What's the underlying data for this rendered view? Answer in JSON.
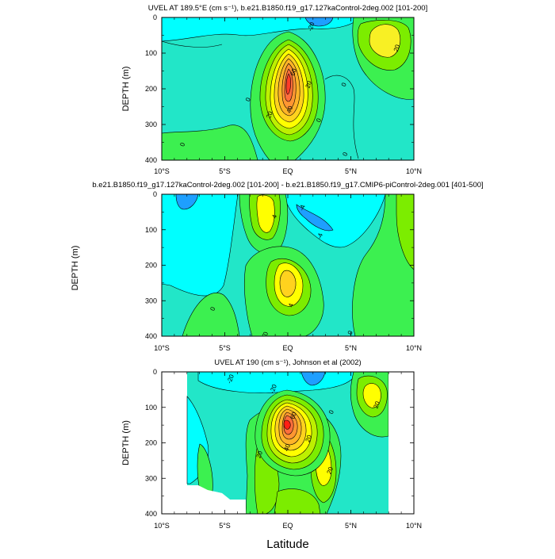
{
  "figure": {
    "xlabel": "Latitude",
    "shared_ylabel": "DEPTH (m)"
  },
  "chart_data": [
    {
      "type": "heatmap",
      "title": "UVEL AT 189.5°E (cm s⁻¹), b.e21.B1850.f19_g17.127kaControl-2deg.002 [101-200]",
      "ylabel": "DEPTH (m)",
      "xlabel": "",
      "x_ticks": [
        "10°S",
        "5°S",
        "EQ",
        "5°N",
        "10°N"
      ],
      "x_tick_values": [
        -10,
        -5,
        0,
        5,
        10
      ],
      "xlim": [
        -10,
        10
      ],
      "y_ticks": [
        "0",
        "100",
        "200",
        "300",
        "400"
      ],
      "y_tick_values": [
        0,
        100,
        200,
        300,
        400
      ],
      "ylim": [
        0,
        400
      ],
      "contour_interval": 10,
      "contour_labels": [
        {
          "text": "-20",
          "lat": 2.0,
          "depth": 28
        },
        {
          "text": "20",
          "lat": 8.8,
          "depth": 88
        },
        {
          "text": "60",
          "lat": 0.6,
          "depth": 155
        },
        {
          "text": "20",
          "lat": 1.8,
          "depth": 190
        },
        {
          "text": "0",
          "lat": 4.6,
          "depth": 190
        },
        {
          "text": "0",
          "lat": -3.0,
          "depth": 232
        },
        {
          "text": "40",
          "lat": 0.3,
          "depth": 260
        },
        {
          "text": "20",
          "lat": -1.3,
          "depth": 275
        },
        {
          "text": "0",
          "lat": 2.6,
          "depth": 290
        },
        {
          "text": "0",
          "lat": -8.2,
          "depth": 358
        },
        {
          "text": "0",
          "lat": 4.7,
          "depth": 385
        }
      ],
      "features": [
        {
          "kind": "max",
          "lat": 0.0,
          "depth": 180,
          "value": 75
        },
        {
          "kind": "max",
          "lat": 7.2,
          "depth": 60,
          "value": 30
        },
        {
          "kind": "min",
          "lat": 2.4,
          "depth": 5,
          "value": -20
        }
      ]
    },
    {
      "type": "heatmap",
      "title": "b.e21.B1850.f19_g17.127kaControl-2deg.002 [101-200] - b.e21.B1850.f19_g17.CMIP6-piControl-2deg.001 [401-500]",
      "ylabel": "DEPTH (m)",
      "xlabel": "",
      "x_ticks": [
        "10°S",
        "5°S",
        "EQ",
        "5°N",
        "10°N"
      ],
      "x_tick_values": [
        -10,
        -5,
        0,
        5,
        10
      ],
      "xlim": [
        -10,
        10
      ],
      "y_ticks": [
        "0",
        "100",
        "200",
        "300",
        "400"
      ],
      "y_tick_values": [
        0,
        100,
        200,
        300,
        400
      ],
      "ylim": [
        0,
        400
      ],
      "contour_interval": 2,
      "contour_labels": [
        {
          "text": "4",
          "lat": -0.9,
          "depth": 65
        },
        {
          "text": "-4",
          "lat": 1.3,
          "depth": 40
        },
        {
          "text": "-4",
          "lat": 2.7,
          "depth": 120
        },
        {
          "text": "4",
          "lat": 0.4,
          "depth": 315
        },
        {
          "text": "0",
          "lat": -5.8,
          "depth": 325
        },
        {
          "text": "0",
          "lat": -1.6,
          "depth": 395
        },
        {
          "text": "0",
          "lat": 5.1,
          "depth": 392
        }
      ],
      "features": [
        {
          "kind": "max",
          "lat": -1.8,
          "depth": 30,
          "value": 8
        },
        {
          "kind": "max",
          "lat": 0.0,
          "depth": 235,
          "value": 8
        },
        {
          "kind": "min",
          "lat": 1.5,
          "depth": 60,
          "value": -6
        }
      ]
    },
    {
      "type": "heatmap",
      "title": "UVEL AT 190 (cm s⁻¹), Johnson et al (2002)",
      "ylabel": "DEPTH (m)",
      "xlabel": "Latitude",
      "x_ticks": [
        "10°S",
        "5°S",
        "EQ",
        "5°N",
        "10°N"
      ],
      "x_tick_values": [
        -10,
        -5,
        0,
        5,
        10
      ],
      "xlim": [
        -10,
        10
      ],
      "y_ticks": [
        "0",
        "100",
        "200",
        "300",
        "400"
      ],
      "y_tick_values": [
        0,
        100,
        200,
        300,
        400
      ],
      "ylim": [
        0,
        400
      ],
      "data_lat_range": [
        -8,
        8
      ],
      "contour_interval": 10,
      "contour_labels": [
        {
          "text": "-20",
          "lat": -4.4,
          "depth": 22
        },
        {
          "text": "-20",
          "lat": -1.0,
          "depth": 50
        },
        {
          "text": "0",
          "lat": 3.6,
          "depth": 115
        },
        {
          "text": "20",
          "lat": 7.2,
          "depth": 95
        },
        {
          "text": "60",
          "lat": 0.6,
          "depth": 125
        },
        {
          "text": "20",
          "lat": 1.8,
          "depth": 190
        },
        {
          "text": "40",
          "lat": 0.1,
          "depth": 215
        },
        {
          "text": "20",
          "lat": -2.1,
          "depth": 235
        },
        {
          "text": "20",
          "lat": 3.5,
          "depth": 280
        }
      ],
      "features": [
        {
          "kind": "max",
          "lat": 0.0,
          "depth": 150,
          "value": 85
        },
        {
          "kind": "max",
          "lat": 7.0,
          "depth": 70,
          "value": 30
        },
        {
          "kind": "max",
          "lat": 3.0,
          "depth": 250,
          "value": 30
        },
        {
          "kind": "min",
          "lat": 2.0,
          "depth": 10,
          "value": -30
        }
      ]
    }
  ]
}
